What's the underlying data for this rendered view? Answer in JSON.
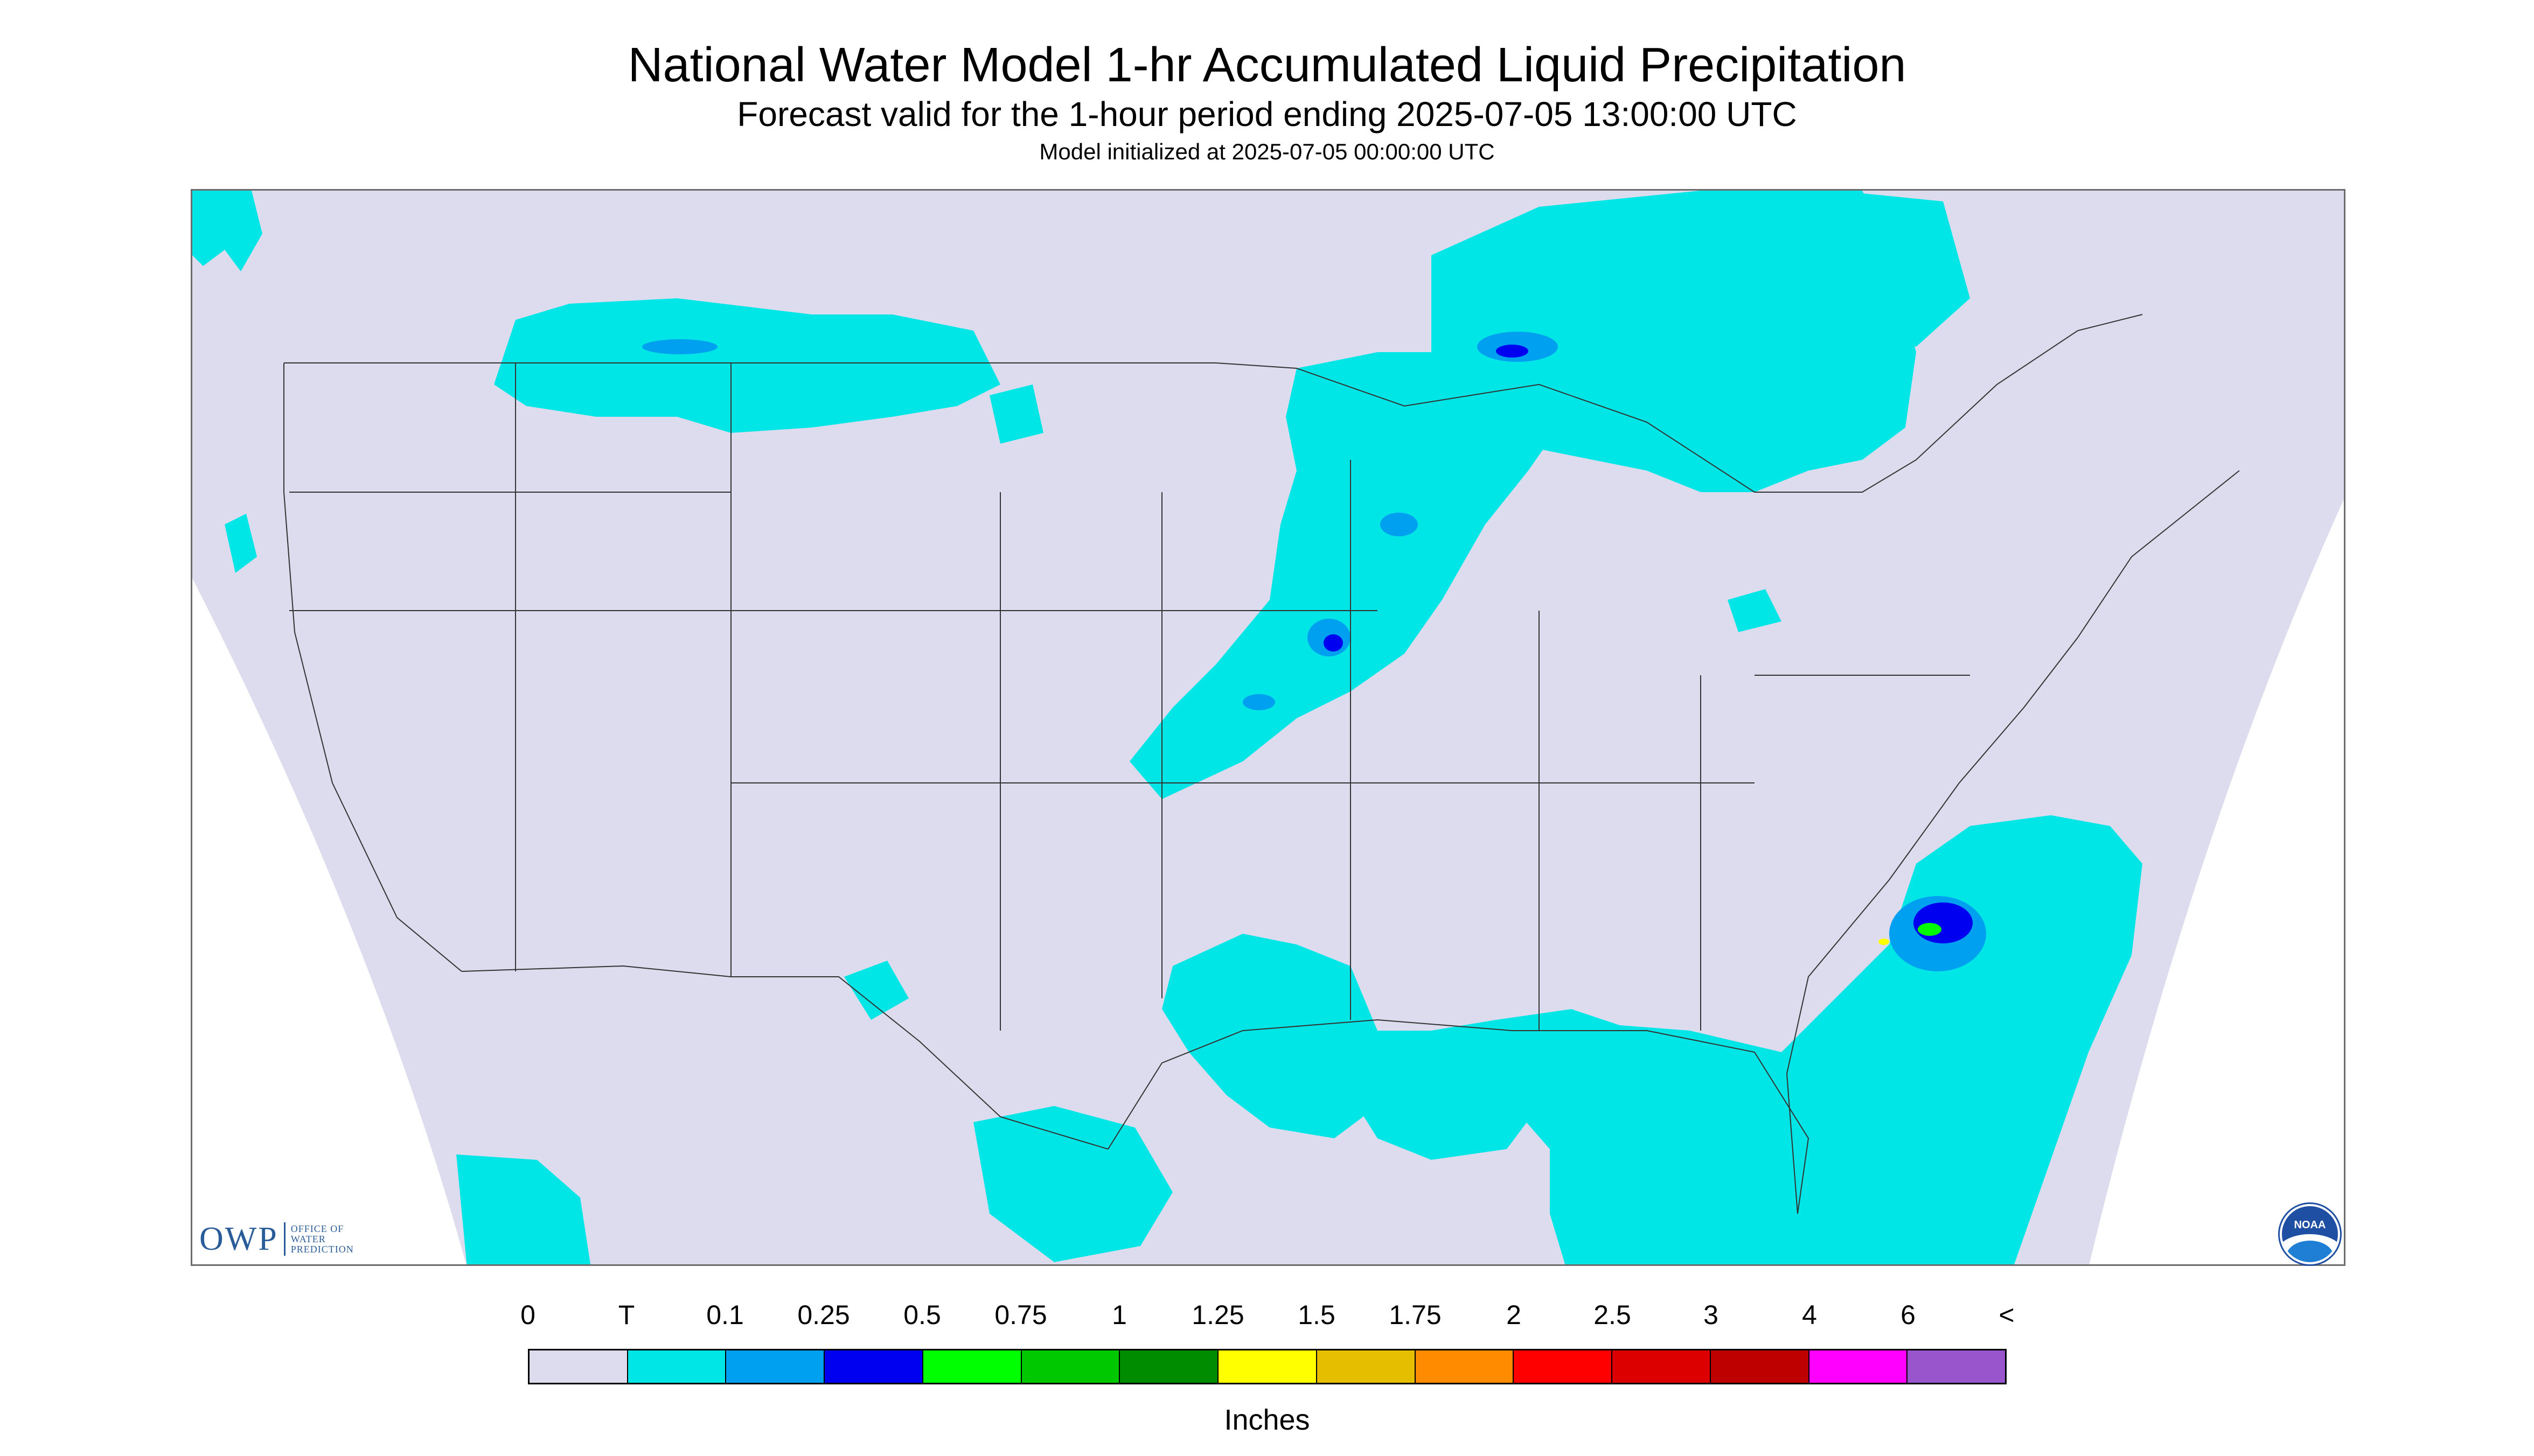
{
  "title": "National Water Model 1-hr Accumulated Liquid Precipitation",
  "subtitle": "Forecast valid for the 1-hour period ending 2025-07-05 13:00:00 UTC",
  "init_line": "Model initialized at 2025-07-05 00:00:00 UTC",
  "owp_logo": {
    "mark": "OWP",
    "line1": "OFFICE OF",
    "line2": "WATER",
    "line3": "PREDICTION"
  },
  "noaa_logo": {
    "label": "NOAA"
  },
  "legend": {
    "ticks": [
      "0",
      "T",
      "0.1",
      "0.25",
      "0.5",
      "0.75",
      "1",
      "1.25",
      "1.5",
      "1.75",
      "2",
      "2.5",
      "3",
      "4",
      "6",
      "<"
    ],
    "colors": [
      "#dcdcee",
      "#00e6e6",
      "#00a0f0",
      "#0000f0",
      "#00ff00",
      "#00c800",
      "#008c00",
      "#ffff00",
      "#e6be00",
      "#ff8c00",
      "#ff0000",
      "#dc0000",
      "#be0000",
      "#ff00ff",
      "#9955cc"
    ],
    "unit": "Inches"
  },
  "map_colors": {
    "domain": "#dcdcee",
    "outside": "#ffffff",
    "trace": "#00e6e6",
    "light_blue": "#00a0f0",
    "blue": "#0000f0",
    "green": "#00ff00",
    "yellow": "#ffff00",
    "boundaries": "#333333"
  }
}
